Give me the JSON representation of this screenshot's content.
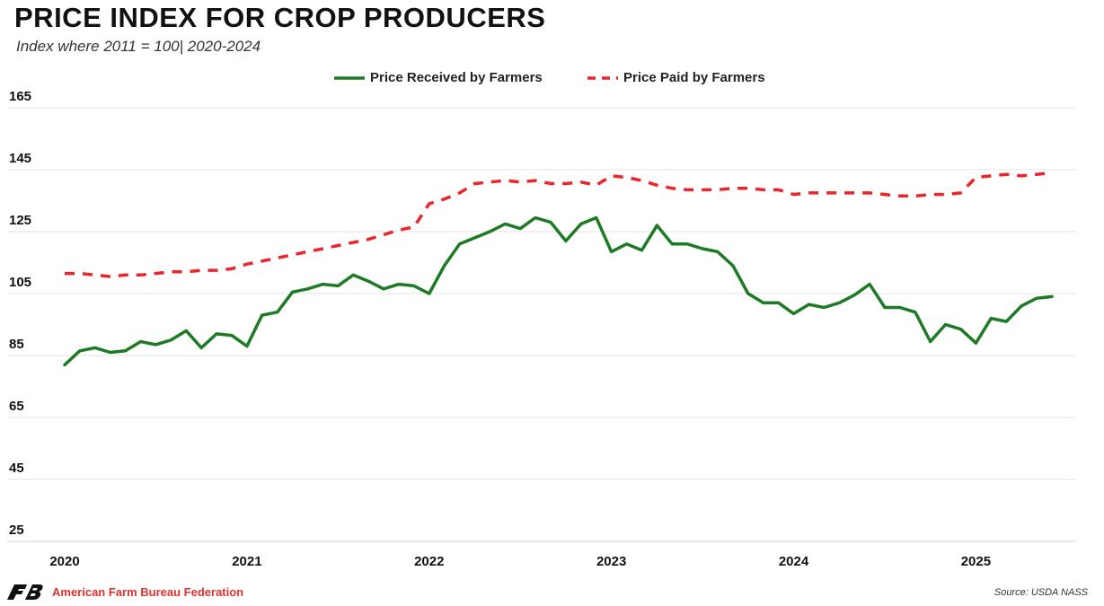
{
  "chart_data": {
    "type": "line",
    "title": "PRICE INDEX FOR CROP PRODUCERS",
    "subtitle": "Index where 2011 = 100| 2020-2024",
    "ylim": [
      25,
      165
    ],
    "yticks": [
      25,
      45,
      65,
      85,
      105,
      125,
      145,
      165
    ],
    "xlim": [
      2020,
      2025.55
    ],
    "xticks": [
      {
        "value": 2020,
        "label": "2020"
      },
      {
        "value": 2021,
        "label": "2021"
      },
      {
        "value": 2022,
        "label": "2022"
      },
      {
        "value": 2023,
        "label": "2023"
      },
      {
        "value": 2024,
        "label": "2024"
      },
      {
        "value": 2025,
        "label": "2025"
      }
    ],
    "grid": true,
    "legend_position": "top-center",
    "series": [
      {
        "name": "Price Received by Farmers",
        "color": "#1e7a25",
        "dash": "solid",
        "x": [
          2020.0,
          2020.083,
          2020.167,
          2020.25,
          2020.333,
          2020.417,
          2020.5,
          2020.583,
          2020.667,
          2020.75,
          2020.833,
          2020.917,
          2021.0,
          2021.083,
          2021.167,
          2021.25,
          2021.333,
          2021.417,
          2021.5,
          2021.583,
          2021.667,
          2021.75,
          2021.833,
          2021.917,
          2022.0,
          2022.083,
          2022.167,
          2022.25,
          2022.333,
          2022.417,
          2022.5,
          2022.583,
          2022.667,
          2022.75,
          2022.833,
          2022.917,
          2023.0,
          2023.083,
          2023.167,
          2023.25,
          2023.333,
          2023.417,
          2023.5,
          2023.583,
          2023.667,
          2023.75,
          2023.833,
          2023.917,
          2024.0,
          2024.083,
          2024.167,
          2024.25,
          2024.333,
          2024.417,
          2024.5,
          2024.583,
          2024.667,
          2024.75,
          2024.833,
          2024.917,
          2025.0,
          2025.083,
          2025.167,
          2025.25,
          2025.333,
          2025.417
        ],
        "values": [
          82,
          86.5,
          87.5,
          86,
          86.5,
          89.5,
          88.5,
          90,
          93,
          87.5,
          92,
          91.5,
          88,
          98,
          99,
          105.5,
          106.5,
          108,
          107.5,
          111,
          109,
          106.5,
          108,
          107.5,
          105,
          114,
          121,
          123,
          125,
          127.5,
          126,
          129.5,
          128,
          122,
          127.5,
          129.5,
          118.5,
          121,
          119,
          127,
          121,
          121,
          119.5,
          118.5,
          114,
          105,
          102,
          102,
          98.5,
          101.5,
          100.5,
          102,
          104.5,
          108,
          100.5,
          100.5,
          99,
          89.5,
          95,
          93.5,
          89,
          97,
          96,
          101,
          103.5,
          104
        ]
      },
      {
        "name": "Price Paid by Farmers",
        "color": "#e8262b",
        "dash": "dashed",
        "x": [
          2020.0,
          2020.083,
          2020.167,
          2020.25,
          2020.333,
          2020.417,
          2020.5,
          2020.583,
          2020.667,
          2020.75,
          2020.833,
          2020.917,
          2021.0,
          2021.083,
          2021.167,
          2021.25,
          2021.333,
          2021.417,
          2021.5,
          2021.583,
          2021.667,
          2021.75,
          2021.833,
          2021.917,
          2022.0,
          2022.083,
          2022.167,
          2022.25,
          2022.333,
          2022.417,
          2022.5,
          2022.583,
          2022.667,
          2022.75,
          2022.833,
          2022.917,
          2023.0,
          2023.083,
          2023.167,
          2023.25,
          2023.333,
          2023.417,
          2023.5,
          2023.583,
          2023.667,
          2023.75,
          2023.833,
          2023.917,
          2024.0,
          2024.083,
          2024.167,
          2024.25,
          2024.333,
          2024.417,
          2024.5,
          2024.583,
          2024.667,
          2024.75,
          2024.833,
          2024.917,
          2025.0,
          2025.083,
          2025.167,
          2025.25,
          2025.333,
          2025.417
        ],
        "values": [
          111.5,
          111.5,
          111,
          110.5,
          111,
          111,
          111.5,
          112,
          112,
          112.5,
          112.5,
          113,
          114.5,
          115.5,
          116.5,
          117.5,
          118.5,
          119.5,
          120.5,
          121.5,
          122.5,
          124,
          125.5,
          126.5,
          134,
          135.5,
          137.5,
          140.5,
          141,
          141.5,
          141,
          141.5,
          140.5,
          140.5,
          141,
          140,
          143,
          142.5,
          141.5,
          140,
          139,
          138.5,
          138.5,
          138.5,
          139,
          139,
          138.5,
          138.5,
          137,
          137.5,
          137.5,
          137.5,
          137.5,
          137.5,
          137,
          136.5,
          136.5,
          137,
          137,
          137.5,
          142.5,
          143,
          143.5,
          143,
          143.5,
          144
        ]
      }
    ]
  },
  "footer": {
    "organization": "American Farm Bureau Federation",
    "source": "Source: USDA NASS"
  }
}
